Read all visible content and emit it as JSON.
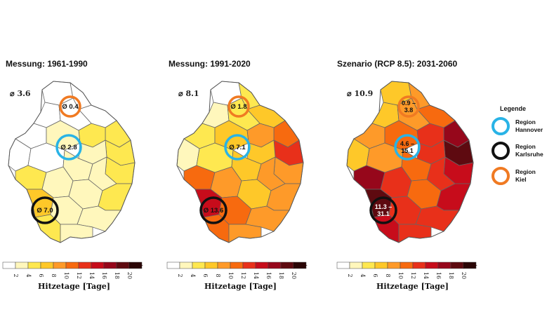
{
  "panels": [
    {
      "title": "Messung: 1961-1990",
      "avg": "⌀ 3.6",
      "regions": {
        "kiel": {
          "label": "Ø 0.4"
        },
        "hannover": {
          "label": "Ø 2.8"
        },
        "karlsruhe": {
          "label": "Ø 7.0"
        }
      }
    },
    {
      "title": "Messung: 1991-2020",
      "avg": "⌀ 8.1",
      "regions": {
        "kiel": {
          "label": "Ø 1.8"
        },
        "hannover": {
          "label": "Ø 7.1"
        },
        "karlsruhe": {
          "label": "Ø 13.6"
        }
      }
    },
    {
      "title": "Szenario (RCP 8.5): 2031-2060",
      "avg": "⌀ 10.9",
      "regions": {
        "kiel": {
          "label": "0.9 –\n3.8"
        },
        "hannover": {
          "label": "4.6 –\n15.1"
        },
        "karlsruhe": {
          "label": "11.3 –\n31.1"
        }
      }
    }
  ],
  "colorbar": {
    "title": "Hitzetage [Tage]",
    "ticks": [
      "2",
      "4",
      "6",
      "8",
      "10",
      "12",
      "14",
      "16",
      "18",
      "20"
    ],
    "colors": [
      "#ffffff",
      "#fff7bc",
      "#fee850",
      "#fec829",
      "#fe9a29",
      "#f76a0f",
      "#e8301a",
      "#c70c1b",
      "#96071b",
      "#5e0a10",
      "#2a0606"
    ]
  },
  "legend": {
    "title": "Legende",
    "items": [
      {
        "label": "Region\nHannover",
        "color": "#29b3e6"
      },
      {
        "label": "Region\nKarlsruhe",
        "color": "#111111"
      },
      {
        "label": "Region\nKiel",
        "color": "#f07a22"
      }
    ]
  },
  "ring_colors": {
    "kiel": "#f07a22",
    "hannover": "#29b3e6",
    "karlsruhe": "#111111"
  }
}
